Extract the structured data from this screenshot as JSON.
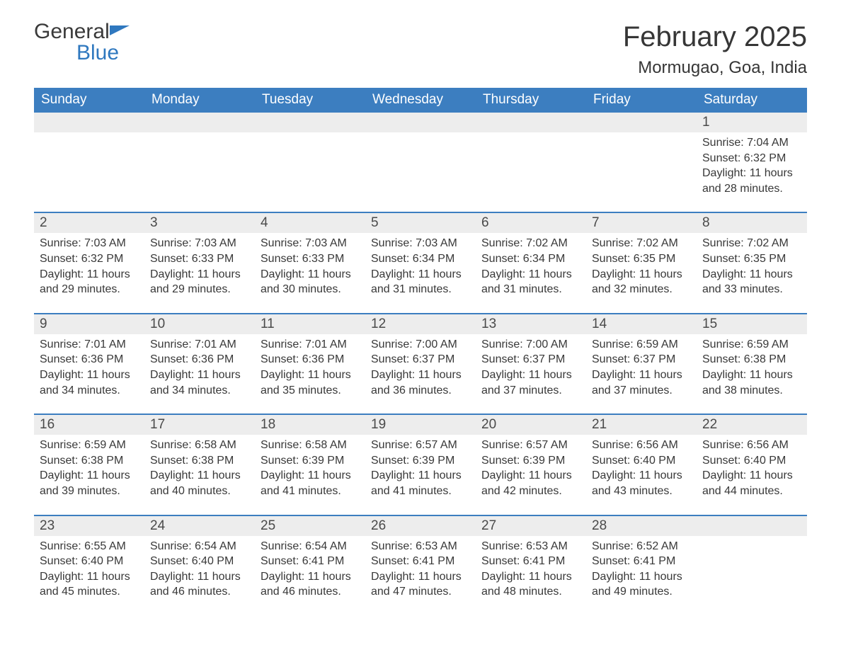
{
  "brand": {
    "name_part1": "General",
    "name_part2": "Blue"
  },
  "title": "February 2025",
  "location": "Mormugao, Goa, India",
  "colors": {
    "header_bg": "#3c7ec0",
    "header_text": "#ffffff",
    "row_accent": "#3c7ec0",
    "daynum_bg": "#ededed",
    "text": "#363636",
    "brand_blue": "#2f78bf"
  },
  "day_names": [
    "Sunday",
    "Monday",
    "Tuesday",
    "Wednesday",
    "Thursday",
    "Friday",
    "Saturday"
  ],
  "weeks": [
    [
      null,
      null,
      null,
      null,
      null,
      null,
      {
        "n": "1",
        "sunrise": "7:04 AM",
        "sunset": "6:32 PM",
        "daylight": "11 hours and 28 minutes."
      }
    ],
    [
      {
        "n": "2",
        "sunrise": "7:03 AM",
        "sunset": "6:32 PM",
        "daylight": "11 hours and 29 minutes."
      },
      {
        "n": "3",
        "sunrise": "7:03 AM",
        "sunset": "6:33 PM",
        "daylight": "11 hours and 29 minutes."
      },
      {
        "n": "4",
        "sunrise": "7:03 AM",
        "sunset": "6:33 PM",
        "daylight": "11 hours and 30 minutes."
      },
      {
        "n": "5",
        "sunrise": "7:03 AM",
        "sunset": "6:34 PM",
        "daylight": "11 hours and 31 minutes."
      },
      {
        "n": "6",
        "sunrise": "7:02 AM",
        "sunset": "6:34 PM",
        "daylight": "11 hours and 31 minutes."
      },
      {
        "n": "7",
        "sunrise": "7:02 AM",
        "sunset": "6:35 PM",
        "daylight": "11 hours and 32 minutes."
      },
      {
        "n": "8",
        "sunrise": "7:02 AM",
        "sunset": "6:35 PM",
        "daylight": "11 hours and 33 minutes."
      }
    ],
    [
      {
        "n": "9",
        "sunrise": "7:01 AM",
        "sunset": "6:36 PM",
        "daylight": "11 hours and 34 minutes."
      },
      {
        "n": "10",
        "sunrise": "7:01 AM",
        "sunset": "6:36 PM",
        "daylight": "11 hours and 34 minutes."
      },
      {
        "n": "11",
        "sunrise": "7:01 AM",
        "sunset": "6:36 PM",
        "daylight": "11 hours and 35 minutes."
      },
      {
        "n": "12",
        "sunrise": "7:00 AM",
        "sunset": "6:37 PM",
        "daylight": "11 hours and 36 minutes."
      },
      {
        "n": "13",
        "sunrise": "7:00 AM",
        "sunset": "6:37 PM",
        "daylight": "11 hours and 37 minutes."
      },
      {
        "n": "14",
        "sunrise": "6:59 AM",
        "sunset": "6:37 PM",
        "daylight": "11 hours and 37 minutes."
      },
      {
        "n": "15",
        "sunrise": "6:59 AM",
        "sunset": "6:38 PM",
        "daylight": "11 hours and 38 minutes."
      }
    ],
    [
      {
        "n": "16",
        "sunrise": "6:59 AM",
        "sunset": "6:38 PM",
        "daylight": "11 hours and 39 minutes."
      },
      {
        "n": "17",
        "sunrise": "6:58 AM",
        "sunset": "6:38 PM",
        "daylight": "11 hours and 40 minutes."
      },
      {
        "n": "18",
        "sunrise": "6:58 AM",
        "sunset": "6:39 PM",
        "daylight": "11 hours and 41 minutes."
      },
      {
        "n": "19",
        "sunrise": "6:57 AM",
        "sunset": "6:39 PM",
        "daylight": "11 hours and 41 minutes."
      },
      {
        "n": "20",
        "sunrise": "6:57 AM",
        "sunset": "6:39 PM",
        "daylight": "11 hours and 42 minutes."
      },
      {
        "n": "21",
        "sunrise": "6:56 AM",
        "sunset": "6:40 PM",
        "daylight": "11 hours and 43 minutes."
      },
      {
        "n": "22",
        "sunrise": "6:56 AM",
        "sunset": "6:40 PM",
        "daylight": "11 hours and 44 minutes."
      }
    ],
    [
      {
        "n": "23",
        "sunrise": "6:55 AM",
        "sunset": "6:40 PM",
        "daylight": "11 hours and 45 minutes."
      },
      {
        "n": "24",
        "sunrise": "6:54 AM",
        "sunset": "6:40 PM",
        "daylight": "11 hours and 46 minutes."
      },
      {
        "n": "25",
        "sunrise": "6:54 AM",
        "sunset": "6:41 PM",
        "daylight": "11 hours and 46 minutes."
      },
      {
        "n": "26",
        "sunrise": "6:53 AM",
        "sunset": "6:41 PM",
        "daylight": "11 hours and 47 minutes."
      },
      {
        "n": "27",
        "sunrise": "6:53 AM",
        "sunset": "6:41 PM",
        "daylight": "11 hours and 48 minutes."
      },
      {
        "n": "28",
        "sunrise": "6:52 AM",
        "sunset": "6:41 PM",
        "daylight": "11 hours and 49 minutes."
      },
      null
    ]
  ],
  "labels": {
    "sunrise": "Sunrise:",
    "sunset": "Sunset:",
    "daylight": "Daylight:"
  }
}
